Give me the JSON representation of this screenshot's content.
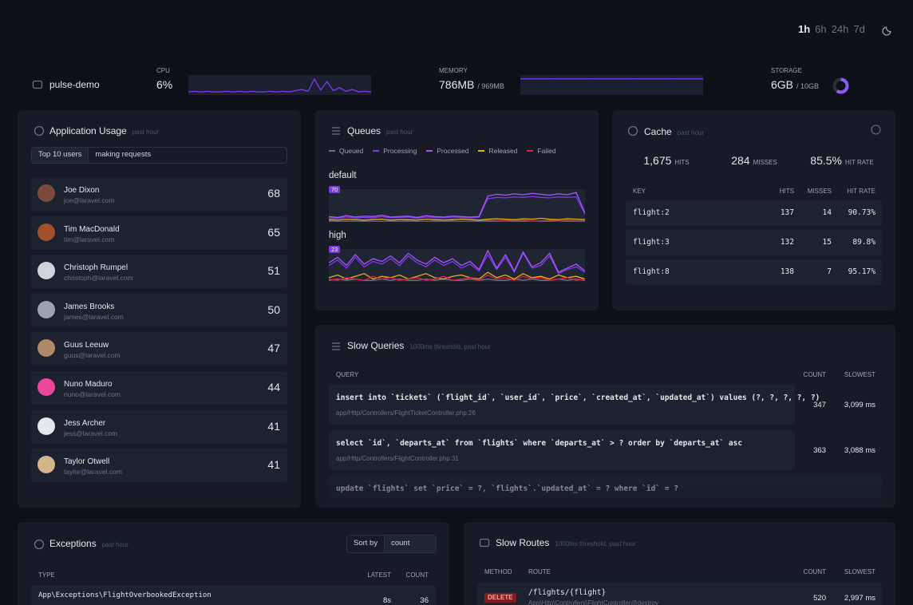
{
  "header": {
    "periods": [
      "1h",
      "6h",
      "24h",
      "7d"
    ]
  },
  "servers": [
    {
      "name": "pulse-demo",
      "cpu": {
        "label": "CPU",
        "value": 6,
        "value_label": "6%",
        "history": [
          5,
          6,
          5,
          6,
          5,
          5,
          6,
          5,
          6,
          5,
          6,
          5,
          5,
          6,
          5,
          6,
          5,
          7,
          9,
          6,
          26,
          8,
          22,
          7,
          12,
          6,
          9,
          5,
          6,
          5
        ]
      },
      "memory": {
        "label": "MEMORY",
        "value": 786,
        "value_label": "786MB",
        "total": 969,
        "total_label": "/ 969MB",
        "history": [
          785,
          786,
          786,
          785,
          786,
          787,
          786,
          786,
          785,
          786,
          786,
          787,
          786,
          786,
          785,
          786,
          786,
          786,
          787,
          786,
          786,
          785,
          786,
          786,
          787,
          786,
          786,
          785,
          786,
          786
        ]
      },
      "storage": {
        "label": "STORAGE",
        "value": 6,
        "value_label": "6GB",
        "total": 10,
        "total_label": "/ 10GB"
      }
    }
  ],
  "usage": {
    "title": "Application Usage",
    "subtitle": "past hour",
    "select_left": "Top 10 users",
    "select_right": "making requests",
    "users": [
      {
        "name": "Joe Dixon",
        "email": "joe@laravel.com",
        "count": 68
      },
      {
        "name": "Tim MacDonald",
        "email": "tim@laravel.com",
        "count": 65
      },
      {
        "name": "Christoph Rumpel",
        "email": "christoph@laravel.com",
        "count": 51
      },
      {
        "name": "James Brooks",
        "email": "james@laravel.com",
        "count": 50
      },
      {
        "name": "Guus Leeuw",
        "email": "guus@laravel.com",
        "count": 47
      },
      {
        "name": "Nuno Maduro",
        "email": "nuno@laravel.com",
        "count": 44
      },
      {
        "name": "Jess Archer",
        "email": "jess@laravel.com",
        "count": 41
      },
      {
        "name": "Taylor Otwell",
        "email": "taylor@laravel.com",
        "count": 41
      }
    ]
  },
  "queues": {
    "title": "Queues",
    "subtitle": "past hour",
    "legend": [
      {
        "name": "Queued",
        "color": "#6b7280"
      },
      {
        "name": "Processing",
        "color": "#7c3aed"
      },
      {
        "name": "Processed",
        "color": "#a855f7"
      },
      {
        "name": "Released",
        "color": "#eab308"
      },
      {
        "name": "Failed",
        "color": "#e11d48"
      }
    ],
    "queues": [
      {
        "name": "default",
        "max": 70,
        "values": [
          [
            2,
            1,
            2,
            1,
            2,
            1,
            1,
            2,
            1,
            2,
            1,
            1,
            2,
            1,
            2,
            1,
            1,
            2,
            3,
            2,
            3,
            2,
            3,
            2,
            2,
            3,
            2,
            3,
            2,
            2
          ],
          [
            9,
            8,
            11,
            9,
            10,
            9,
            12,
            9,
            10,
            11,
            8,
            11,
            10,
            9,
            11,
            10,
            9,
            10,
            52,
            55,
            54,
            56,
            55,
            57,
            55,
            54,
            56,
            55,
            56,
            18
          ],
          [
            12,
            10,
            14,
            11,
            13,
            12,
            15,
            11,
            12,
            13,
            10,
            14,
            12,
            11,
            13,
            12,
            11,
            12,
            58,
            62,
            60,
            63,
            61,
            64,
            62,
            60,
            63,
            61,
            66,
            20
          ],
          [
            5,
            4,
            6,
            5,
            4,
            5,
            6,
            4,
            5,
            5,
            4,
            6,
            5,
            4,
            5,
            6,
            5,
            4,
            6,
            7,
            6,
            5,
            7,
            6,
            8,
            6,
            5,
            7,
            6,
            5
          ],
          [
            1,
            0,
            1,
            0,
            1,
            1,
            0,
            1,
            0,
            1,
            0,
            1,
            1,
            0,
            1,
            0,
            1,
            0,
            1,
            1,
            2,
            1,
            1,
            2,
            1,
            1,
            2,
            1,
            1,
            1
          ]
        ]
      },
      {
        "name": "high",
        "max": 23,
        "values": [
          [
            1,
            2,
            1,
            2,
            1,
            1,
            2,
            1,
            2,
            1,
            1,
            2,
            1,
            2,
            1,
            1,
            2,
            1,
            2,
            1,
            1,
            2,
            1,
            2,
            1,
            1,
            2,
            1,
            2,
            1
          ],
          [
            12,
            16,
            10,
            18,
            11,
            15,
            13,
            17,
            12,
            19,
            14,
            11,
            16,
            12,
            15,
            10,
            13,
            8,
            20,
            9,
            18,
            7,
            21,
            10,
            12,
            19,
            6,
            9,
            11,
            7
          ],
          [
            14,
            18,
            12,
            20,
            13,
            17,
            15,
            19,
            14,
            21,
            16,
            13,
            18,
            14,
            17,
            12,
            15,
            9,
            23,
            10,
            20,
            8,
            22,
            11,
            14,
            21,
            7,
            10,
            13,
            8
          ],
          [
            3,
            5,
            2,
            4,
            6,
            2,
            4,
            3,
            5,
            2,
            4,
            6,
            3,
            2,
            4,
            5,
            3,
            2,
            7,
            3,
            5,
            2,
            6,
            3,
            4,
            2,
            5,
            3,
            4,
            2
          ],
          [
            2,
            1,
            3,
            2,
            1,
            4,
            2,
            3,
            1,
            2,
            3,
            1,
            2,
            4,
            1,
            2,
            3,
            1,
            5,
            2,
            3,
            1,
            4,
            2,
            3,
            1,
            2,
            3,
            1,
            2
          ]
        ]
      }
    ]
  },
  "cache": {
    "title": "Cache",
    "subtitle": "past hour",
    "stats": [
      {
        "value": "1,675",
        "label": "HITS"
      },
      {
        "value": "284",
        "label": "MISSES"
      },
      {
        "value": "85.5%",
        "label": "HIT RATE"
      }
    ],
    "columns": [
      "KEY",
      "HITS",
      "MISSES",
      "HIT RATE"
    ],
    "rows": [
      [
        "flight:2",
        "137",
        "14",
        "90.73%"
      ],
      [
        "flight:3",
        "132",
        "15",
        "89.8%"
      ],
      [
        "flight:8",
        "138",
        "7",
        "95.17%"
      ]
    ]
  },
  "slow_queries": {
    "title": "Slow Queries",
    "subtitle": "1000ms threshold, past hour",
    "columns": [
      "QUERY",
      "COUNT",
      "SLOWEST"
    ],
    "rows": [
      {
        "sql": "insert into `tickets` (`flight_id`, `user_id`, `price`, `created_at`, `updated_at`) values (?, ?, ?, ?, ?)",
        "location": "app/Http/Controllers/FlightTicketController.php:26",
        "count": "347",
        "slowest": "3,099 ms"
      },
      {
        "sql": "select `id`, `departs_at` from `flights` where `departs_at` > ? order by `departs_at` asc",
        "location": "app/Http/Controllers/FlightController.php:31",
        "count": "363",
        "slowest": "3,088 ms"
      },
      {
        "sql": "update `flights` set `price` = ?, `flights`.`updated_at` = ? where `id` = ?"
      }
    ]
  },
  "exceptions": {
    "title": "Exceptions",
    "subtitle": "past hour",
    "sort_label": "Sort by",
    "sort_value": "count",
    "columns": [
      "TYPE",
      "LATEST",
      "COUNT"
    ],
    "rows": [
      {
        "type": "App\\Exceptions\\FlightOverbookedException",
        "latest": "8s",
        "count": "36"
      }
    ]
  },
  "slow_routes": {
    "title": "Slow Routes",
    "subtitle": "1000ms threshold, past hour",
    "columns": [
      "METHOD",
      "ROUTE",
      "COUNT",
      "SLOWEST"
    ],
    "rows": [
      {
        "method": "DELETE",
        "route": "/flights/{flight}",
        "action": "App\\Http\\Controllers\\FlightController@destroy",
        "count": "520",
        "slowest": "2,997 ms"
      }
    ]
  }
}
